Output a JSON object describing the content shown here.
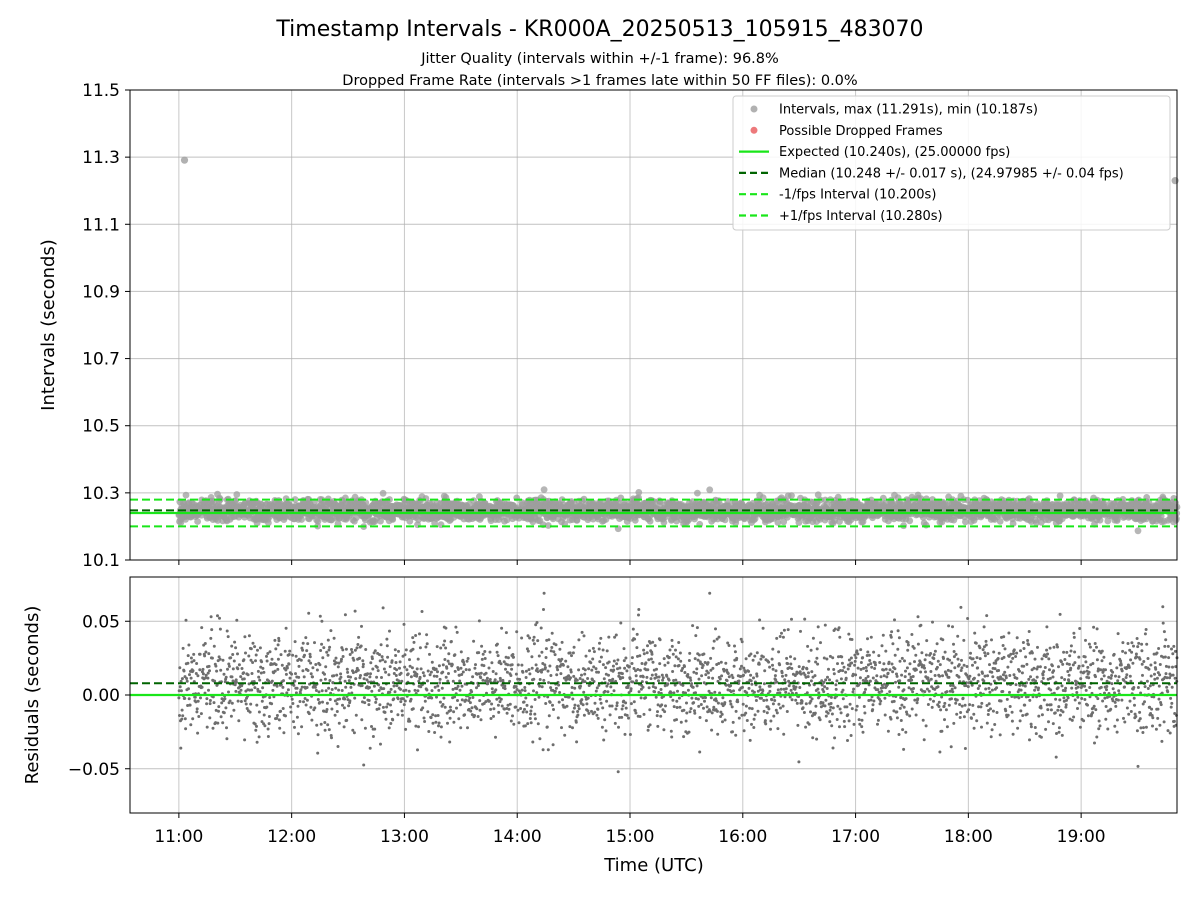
{
  "title": "Timestamp Intervals - KR000A_20250513_105915_483070",
  "subtitle_1": "Jitter Quality (intervals within +/-1 frame): 96.8%",
  "subtitle_2": "Dropped Frame Rate (intervals >1 frames late within 50 FF files): 0.0%",
  "colors": {
    "points": "#9e9e9e",
    "residual_points": "#6e6e6e",
    "dropped": "#e8585a",
    "expected": "#19e619",
    "median": "#006400",
    "fps_band": "#19e619",
    "grid": "#b0b0b0"
  },
  "chart_data": [
    {
      "type": "scatter",
      "panel": "intervals",
      "ylabel": "Intervals (seconds)",
      "xlim": [
        "10:34",
        "19:51"
      ],
      "ylim": [
        10.1,
        11.5
      ],
      "yticks": [
        "10.1",
        "10.3",
        "10.5",
        "10.7",
        "10.9",
        "11.1",
        "11.3",
        "11.5"
      ],
      "xticks": [
        "11:00",
        "12:00",
        "13:00",
        "14:00",
        "15:00",
        "16:00",
        "17:00",
        "18:00",
        "19:00"
      ],
      "grid": true,
      "legend_position": "upper-right",
      "legend": [
        {
          "key": "intervals",
          "label": "Intervals, max (11.291s), min (10.187s)",
          "marker": "point"
        },
        {
          "key": "dropped",
          "label": "Possible Dropped Frames",
          "marker": "point"
        },
        {
          "key": "expected",
          "label": "Expected (10.240s), (25.00000 fps)",
          "marker": "solid"
        },
        {
          "key": "median",
          "label": "Median (10.248 +/- 0.017 s), (24.97985 +/- 0.04 fps)",
          "marker": "dashed"
        },
        {
          "key": "minus",
          "label": "-1/fps Interval (10.200s)",
          "marker": "dashed"
        },
        {
          "key": "plus",
          "label": "+1/fps Interval (10.280s)",
          "marker": "dashed"
        }
      ],
      "expected_interval": 10.24,
      "median_interval": 10.248,
      "median_std": 0.017,
      "minus_fps_interval": 10.2,
      "plus_fps_interval": 10.28,
      "max_interval": 11.291,
      "min_interval": 10.187,
      "outliers": [
        {
          "x": "11:03",
          "y": 11.291
        },
        {
          "x": "19:50",
          "y": 11.23
        }
      ],
      "point_count_approx": 3100,
      "time_start": "11:00",
      "time_end": "19:51"
    },
    {
      "type": "scatter",
      "panel": "residuals",
      "xlabel": "Time (UTC)",
      "ylabel": "Residuals (seconds)",
      "xlim": [
        "10:34",
        "19:51"
      ],
      "ylim": [
        -0.08,
        0.08
      ],
      "yticks": [
        "−0.05",
        "0.00",
        "0.05"
      ],
      "xticks": [
        "11:00",
        "12:00",
        "13:00",
        "14:00",
        "15:00",
        "16:00",
        "17:00",
        "18:00",
        "19:00"
      ],
      "grid": true,
      "expected_residual": 0.0,
      "median_residual": 0.008,
      "residual_std": 0.017,
      "residual_max": 0.069,
      "residual_min": -0.052
    }
  ]
}
